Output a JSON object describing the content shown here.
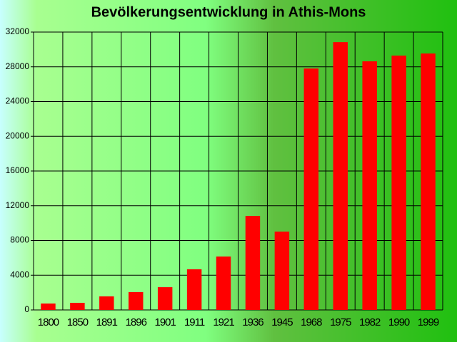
{
  "chart_data": {
    "type": "bar",
    "title": "Bevölkerungsentwicklung in Athis-Mons",
    "categories": [
      "1800",
      "1850",
      "1891",
      "1896",
      "1901",
      "1911",
      "1921",
      "1936",
      "1945",
      "1968",
      "1975",
      "1982",
      "1990",
      "1999"
    ],
    "values": [
      740,
      820,
      1560,
      2050,
      2620,
      4680,
      6150,
      10830,
      9020,
      27800,
      30840,
      28630,
      29290,
      29530
    ],
    "color": "#ff0000",
    "ylim": [
      0,
      32000
    ],
    "yticks": [
      0,
      4000,
      8000,
      12000,
      16000,
      20000,
      24000,
      28000,
      32000
    ],
    "grid": true
  }
}
